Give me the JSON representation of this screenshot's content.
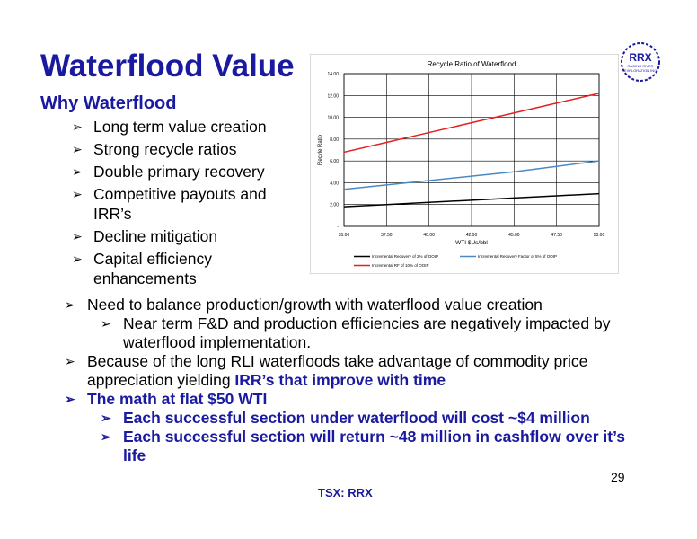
{
  "slide": {
    "title": "Waterflood Value",
    "subtitle": "Why Waterflood",
    "bullets": [
      "Long term value creation",
      "Strong recycle ratios",
      "Double primary recovery",
      "Competitive payouts and IRR’s",
      "Decline mitigation",
      "Capital efficiency enhancements"
    ],
    "lower": {
      "b1": "Need to balance production/growth with waterflood value creation",
      "b1_sub": "Near term F&D and production efficiencies are negatively impacted by waterflood implementation.",
      "b2_text": "Because of the long RLI waterfloods take advantage of commodity price appreciation yielding ",
      "b2_bold": "IRR’s that improve with time",
      "b3": "The math at flat $50 WTI",
      "b3_sub1": "Each successful section under waterflood will cost ~$4 million",
      "b3_sub2": "Each successful section will return ~48 million in cashflow over it’s life"
    },
    "page_number": "29",
    "footer": "TSX: RRX",
    "logo": {
      "text": "RRX",
      "tagline_line1": "RAGING RIVER",
      "tagline_line2": "EXPLORATION INC",
      "color": "#1a1aa0"
    }
  },
  "chart_data": {
    "type": "line",
    "title": "Recycle Ratio of Waterflood",
    "xlabel": "WTI $Us/bbl",
    "ylabel": "Recyle Ratio",
    "x": [
      35,
      37.5,
      40,
      42.5,
      45,
      47.5,
      50
    ],
    "x_tick_labels": [
      "35.00",
      "37.50",
      "40.00",
      "42.50",
      "45.00",
      "47.50",
      "50.00"
    ],
    "y_tick_labels": [
      "-",
      "2.00",
      "4.00",
      "6.00",
      "8.00",
      "10.00",
      "12.00",
      "14.00"
    ],
    "ylim": [
      0,
      14
    ],
    "xlim": [
      35,
      50
    ],
    "grid": true,
    "legend_position": "bottom",
    "series": [
      {
        "name": "Incremental Recovery of 2% of OOIP",
        "color": "#000000",
        "values": [
          1.8,
          2.0,
          2.2,
          2.4,
          2.6,
          2.8,
          3.0
        ]
      },
      {
        "name": "Incremental Recovery Factor of 5% of OOIP",
        "color": "#4a8ac4",
        "values": [
          3.4,
          3.8,
          4.2,
          4.6,
          5.0,
          5.5,
          6.0
        ]
      },
      {
        "name": "Incremental RF of 10% of OOIP",
        "color": "#e81e1e",
        "values": [
          6.8,
          7.7,
          8.6,
          9.5,
          10.4,
          11.3,
          12.2
        ]
      }
    ]
  }
}
